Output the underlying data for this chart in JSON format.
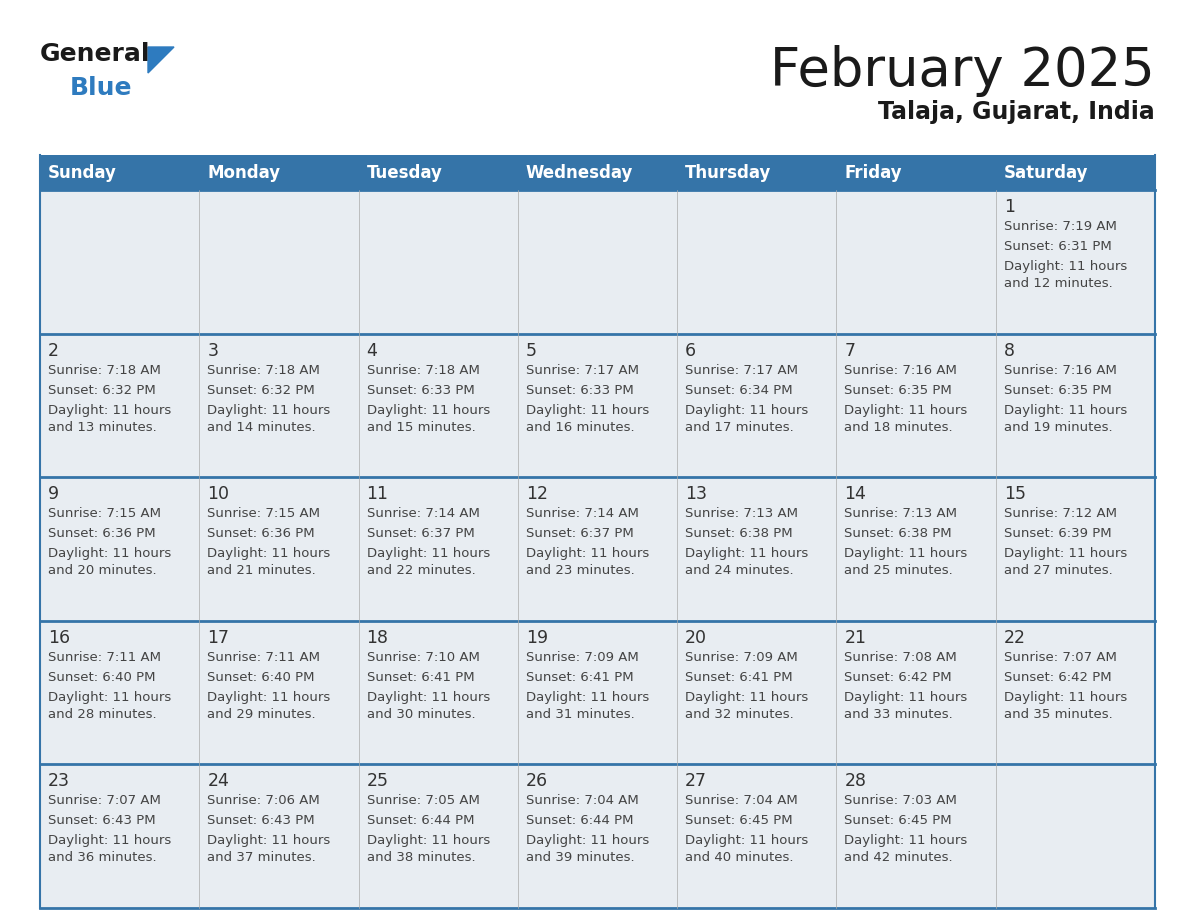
{
  "title": "February 2025",
  "subtitle": "Talaja, Gujarat, India",
  "header_bg": "#3574a8",
  "header_text": "#ffffff",
  "day_names": [
    "Sunday",
    "Monday",
    "Tuesday",
    "Wednesday",
    "Thursday",
    "Friday",
    "Saturday"
  ],
  "cell_bg": "#e8edf2",
  "cell_bg_white": "#ffffff",
  "separator_color": "#3574a8",
  "day_num_color": "#333333",
  "info_color": "#444444",
  "title_color": "#1a1a1a",
  "subtitle_color": "#1a1a1a",
  "logo_general_color": "#1a1a1a",
  "logo_blue_color": "#2e7bbf",
  "calendar_data": [
    [
      null,
      null,
      null,
      null,
      null,
      null,
      {
        "day": 1,
        "sunrise": "7:19 AM",
        "sunset": "6:31 PM",
        "daylight": "11 hours\nand 12 minutes."
      }
    ],
    [
      {
        "day": 2,
        "sunrise": "7:18 AM",
        "sunset": "6:32 PM",
        "daylight": "11 hours\nand 13 minutes."
      },
      {
        "day": 3,
        "sunrise": "7:18 AM",
        "sunset": "6:32 PM",
        "daylight": "11 hours\nand 14 minutes."
      },
      {
        "day": 4,
        "sunrise": "7:18 AM",
        "sunset": "6:33 PM",
        "daylight": "11 hours\nand 15 minutes."
      },
      {
        "day": 5,
        "sunrise": "7:17 AM",
        "sunset": "6:33 PM",
        "daylight": "11 hours\nand 16 minutes."
      },
      {
        "day": 6,
        "sunrise": "7:17 AM",
        "sunset": "6:34 PM",
        "daylight": "11 hours\nand 17 minutes."
      },
      {
        "day": 7,
        "sunrise": "7:16 AM",
        "sunset": "6:35 PM",
        "daylight": "11 hours\nand 18 minutes."
      },
      {
        "day": 8,
        "sunrise": "7:16 AM",
        "sunset": "6:35 PM",
        "daylight": "11 hours\nand 19 minutes."
      }
    ],
    [
      {
        "day": 9,
        "sunrise": "7:15 AM",
        "sunset": "6:36 PM",
        "daylight": "11 hours\nand 20 minutes."
      },
      {
        "day": 10,
        "sunrise": "7:15 AM",
        "sunset": "6:36 PM",
        "daylight": "11 hours\nand 21 minutes."
      },
      {
        "day": 11,
        "sunrise": "7:14 AM",
        "sunset": "6:37 PM",
        "daylight": "11 hours\nand 22 minutes."
      },
      {
        "day": 12,
        "sunrise": "7:14 AM",
        "sunset": "6:37 PM",
        "daylight": "11 hours\nand 23 minutes."
      },
      {
        "day": 13,
        "sunrise": "7:13 AM",
        "sunset": "6:38 PM",
        "daylight": "11 hours\nand 24 minutes."
      },
      {
        "day": 14,
        "sunrise": "7:13 AM",
        "sunset": "6:38 PM",
        "daylight": "11 hours\nand 25 minutes."
      },
      {
        "day": 15,
        "sunrise": "7:12 AM",
        "sunset": "6:39 PM",
        "daylight": "11 hours\nand 27 minutes."
      }
    ],
    [
      {
        "day": 16,
        "sunrise": "7:11 AM",
        "sunset": "6:40 PM",
        "daylight": "11 hours\nand 28 minutes."
      },
      {
        "day": 17,
        "sunrise": "7:11 AM",
        "sunset": "6:40 PM",
        "daylight": "11 hours\nand 29 minutes."
      },
      {
        "day": 18,
        "sunrise": "7:10 AM",
        "sunset": "6:41 PM",
        "daylight": "11 hours\nand 30 minutes."
      },
      {
        "day": 19,
        "sunrise": "7:09 AM",
        "sunset": "6:41 PM",
        "daylight": "11 hours\nand 31 minutes."
      },
      {
        "day": 20,
        "sunrise": "7:09 AM",
        "sunset": "6:41 PM",
        "daylight": "11 hours\nand 32 minutes."
      },
      {
        "day": 21,
        "sunrise": "7:08 AM",
        "sunset": "6:42 PM",
        "daylight": "11 hours\nand 33 minutes."
      },
      {
        "day": 22,
        "sunrise": "7:07 AM",
        "sunset": "6:42 PM",
        "daylight": "11 hours\nand 35 minutes."
      }
    ],
    [
      {
        "day": 23,
        "sunrise": "7:07 AM",
        "sunset": "6:43 PM",
        "daylight": "11 hours\nand 36 minutes."
      },
      {
        "day": 24,
        "sunrise": "7:06 AM",
        "sunset": "6:43 PM",
        "daylight": "11 hours\nand 37 minutes."
      },
      {
        "day": 25,
        "sunrise": "7:05 AM",
        "sunset": "6:44 PM",
        "daylight": "11 hours\nand 38 minutes."
      },
      {
        "day": 26,
        "sunrise": "7:04 AM",
        "sunset": "6:44 PM",
        "daylight": "11 hours\nand 39 minutes."
      },
      {
        "day": 27,
        "sunrise": "7:04 AM",
        "sunset": "6:45 PM",
        "daylight": "11 hours\nand 40 minutes."
      },
      {
        "day": 28,
        "sunrise": "7:03 AM",
        "sunset": "6:45 PM",
        "daylight": "11 hours\nand 42 minutes."
      },
      null
    ]
  ]
}
